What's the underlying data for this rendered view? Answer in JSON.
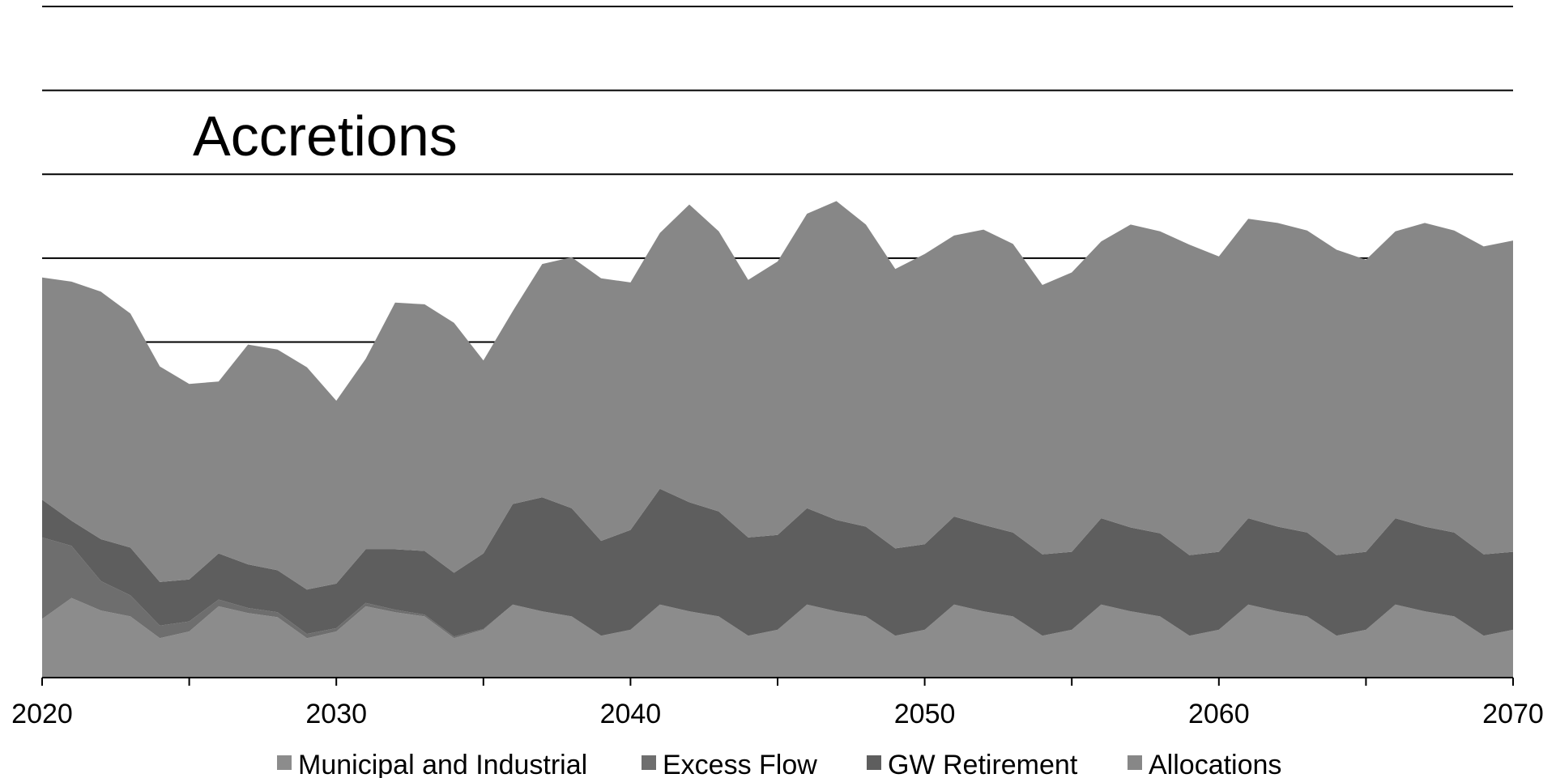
{
  "chart_data": {
    "type": "area",
    "stacked": true,
    "title": "",
    "annotation": "Accretions",
    "xlabel": "",
    "ylabel": "",
    "xlim": [
      2020,
      2070
    ],
    "ylim": [
      0,
      8
    ],
    "gridlines_y": [
      4,
      5,
      6,
      7,
      8
    ],
    "grid": true,
    "legend_position": "bottom",
    "x_ticks": [
      2020,
      2030,
      2040,
      2050,
      2060,
      2070
    ],
    "x": [
      2020,
      2021,
      2022,
      2023,
      2024,
      2025,
      2026,
      2027,
      2028,
      2029,
      2030,
      2031,
      2032,
      2033,
      2034,
      2035,
      2036,
      2037,
      2038,
      2039,
      2040,
      2041,
      2042,
      2043,
      2044,
      2045,
      2046,
      2047,
      2048,
      2049,
      2050,
      2051,
      2052,
      2053,
      2054,
      2055,
      2056,
      2057,
      2058,
      2059,
      2060,
      2061,
      2062,
      2063,
      2064,
      2065,
      2066,
      2067,
      2068,
      2069,
      2070
    ],
    "series": [
      {
        "name": "Municipal and Industrial",
        "color": "#8c8c8c",
        "values": [
          0.7,
          0.95,
          0.8,
          0.73,
          0.47,
          0.55,
          0.85,
          0.77,
          0.72,
          0.47,
          0.55,
          0.85,
          0.78,
          0.73,
          0.47,
          0.57,
          0.87,
          0.79,
          0.73,
          0.5,
          0.57,
          0.87,
          0.79,
          0.73,
          0.5,
          0.57,
          0.87,
          0.79,
          0.73,
          0.5,
          0.57,
          0.87,
          0.79,
          0.73,
          0.5,
          0.57,
          0.87,
          0.79,
          0.73,
          0.5,
          0.57,
          0.87,
          0.79,
          0.73,
          0.5,
          0.57,
          0.87,
          0.79,
          0.73,
          0.5,
          0.57
        ]
      },
      {
        "name": "Excess Flow",
        "color": "#6e6e6e",
        "values": [
          0.97,
          0.62,
          0.35,
          0.25,
          0.15,
          0.12,
          0.08,
          0.06,
          0.06,
          0.05,
          0.04,
          0.04,
          0.03,
          0.02,
          0.02,
          0.01,
          0,
          0,
          0,
          0,
          0,
          0,
          0,
          0,
          0,
          0,
          0,
          0,
          0,
          0,
          0,
          0,
          0,
          0,
          0,
          0,
          0,
          0,
          0,
          0,
          0,
          0,
          0,
          0,
          0,
          0,
          0,
          0,
          0,
          0,
          0
        ]
      },
      {
        "name": "GW Retirement",
        "color": "#5e5e5e",
        "values": [
          0.45,
          0.3,
          0.5,
          0.57,
          0.52,
          0.5,
          0.55,
          0.52,
          0.5,
          0.53,
          0.53,
          0.64,
          0.72,
          0.76,
          0.76,
          0.9,
          1.2,
          1.36,
          1.29,
          1.13,
          1.19,
          1.38,
          1.3,
          1.25,
          1.17,
          1.13,
          1.15,
          1.09,
          1.07,
          1.04,
          1.02,
          1.05,
          1.03,
          1.0,
          0.97,
          0.93,
          1.03,
          1.0,
          0.99,
          0.96,
          0.93,
          1.03,
          1.01,
          1.0,
          0.96,
          0.93,
          1.03,
          1.01,
          1.0,
          0.97,
          0.93
        ]
      },
      {
        "name": "Allocations",
        "color": "#878787",
        "values": [
          2.65,
          2.85,
          2.95,
          2.79,
          2.57,
          2.33,
          2.05,
          2.62,
          2.63,
          2.65,
          2.18,
          2.27,
          2.94,
          2.94,
          2.98,
          2.3,
          2.3,
          2.78,
          2.99,
          3.13,
          2.95,
          3.05,
          3.55,
          3.34,
          3.07,
          3.26,
          3.51,
          3.8,
          3.6,
          3.33,
          3.46,
          3.35,
          3.52,
          3.44,
          3.21,
          3.33,
          3.3,
          3.61,
          3.6,
          3.7,
          3.52,
          3.57,
          3.62,
          3.6,
          3.64,
          3.48,
          3.42,
          3.62,
          3.6,
          3.67,
          3.71
        ]
      }
    ]
  }
}
